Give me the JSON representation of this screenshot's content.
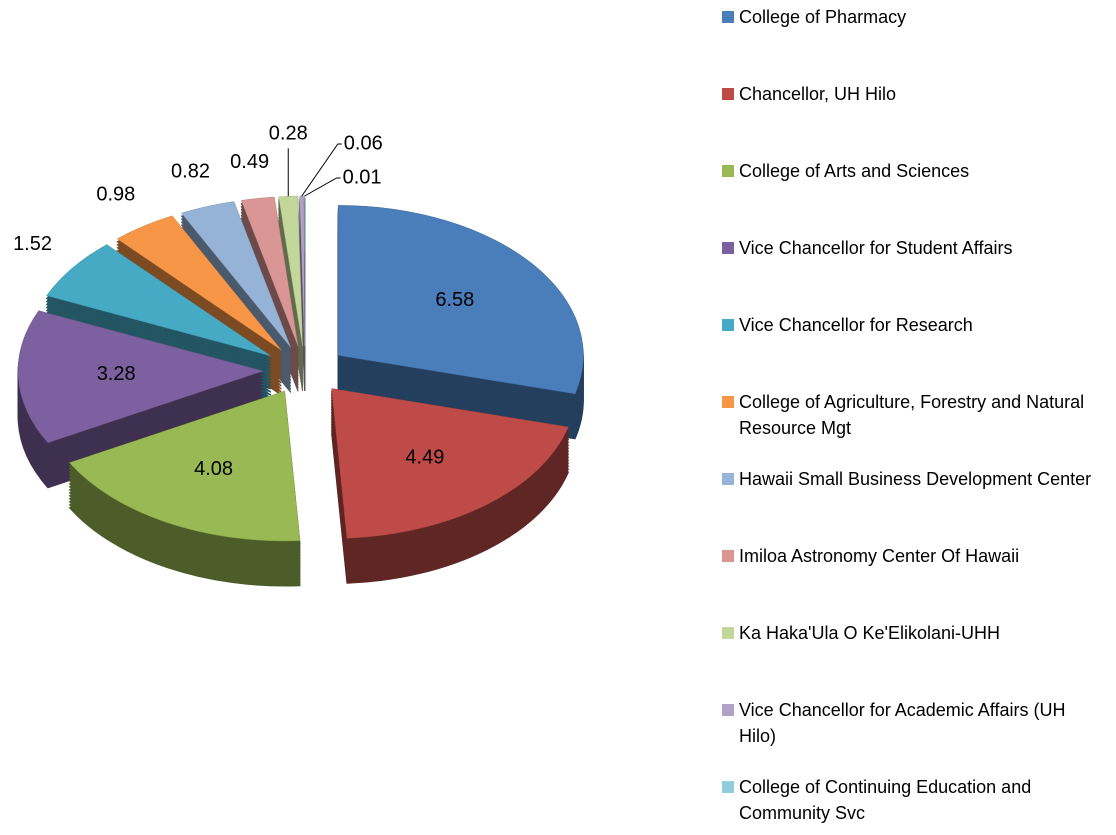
{
  "chart_data": {
    "type": "pie",
    "categories": [
      "College of Pharmacy",
      "Chancellor, UH Hilo",
      "College of Arts and Sciences",
      "Vice Chancellor for Student Affairs",
      "Vice Chancellor for Research",
      "College of Agriculture, Forestry and Natural Resource Mgt",
      "Hawaii Small Business Development Center",
      "Imiloa Astronomy Center Of Hawaii",
      "Ka Haka'Ula O Ke'Elikolani-UHH",
      "Vice Chancellor for Academic Affairs (UH Hilo)",
      "College of Continuing Education and Community Svc"
    ],
    "values": [
      6.58,
      4.49,
      4.08,
      3.28,
      1.52,
      0.98,
      0.82,
      0.49,
      0.28,
      0.06,
      0.01
    ],
    "colors": [
      "#4a7ebb",
      "#be4b48",
      "#98b954",
      "#7d60a0",
      "#46aac5",
      "#f79646",
      "#95b3d7",
      "#d99694",
      "#c3d69b",
      "#b3a2c7",
      "#93cddd"
    ],
    "legend": "right"
  }
}
